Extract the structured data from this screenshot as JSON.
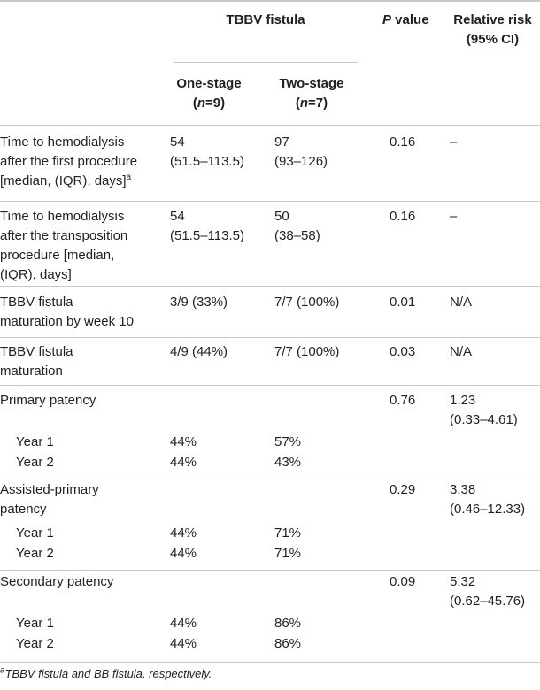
{
  "header": {
    "group_title": "TBBV fistula",
    "p_value_italic": "P",
    "p_value_rest": " value",
    "relative_risk_line1": "Relative risk",
    "relative_risk_line2": "(95% CI)",
    "one_stage_line1": "One-stage",
    "one_stage_n_open": "(",
    "one_stage_n_italic": "n",
    "one_stage_n_rest": "=9)",
    "two_stage_line1": "Two-stage",
    "two_stage_n_open": "(",
    "two_stage_n_italic": "n",
    "two_stage_n_rest": "=7)"
  },
  "rows": {
    "r1": {
      "l1": "Time to hemodialysis",
      "l2": "after the first procedure",
      "l3": "[median, (IQR), days]",
      "l3_sup": "a",
      "one1": "54",
      "one2": "(51.5–113.5)",
      "two1": "97",
      "two2": "(93–126)",
      "p": "0.16",
      "rr": "–"
    },
    "r2": {
      "l1": "Time to hemodialysis",
      "l2": "after the transposition",
      "l3": "procedure [median,",
      "l4": "(IQR), days]",
      "one1": "54",
      "one2": "(51.5–113.5)",
      "two1": "50",
      "two2": "(38–58)",
      "p": "0.16",
      "rr": "–"
    },
    "r3": {
      "l1": "TBBV fistula",
      "l2": "maturation by week 10",
      "one": "3/9 (33%)",
      "two": "7/7 (100%)",
      "p": "0.01",
      "rr": "N/A"
    },
    "r4": {
      "l1": "TBBV fistula",
      "l2": "maturation",
      "one": "4/9 (44%)",
      "two": "7/7 (100%)",
      "p": "0.03",
      "rr": "N/A"
    },
    "r5": {
      "l1": "Primary patency",
      "p": "0.76",
      "rr1": "1.23",
      "rr2": "(0.33–4.61)",
      "y1": "Year 1",
      "y1_one": "44%",
      "y1_two": "57%",
      "y2": "Year 2",
      "y2_one": "44%",
      "y2_two": "43%"
    },
    "r6": {
      "l1": "Assisted-primary",
      "l2": "patency",
      "p": "0.29",
      "rr1": "3.38",
      "rr2": "(0.46–12.33)",
      "y1": "Year 1",
      "y1_one": "44%",
      "y1_two": "71%",
      "y2": "Year 2",
      "y2_one": "44%",
      "y2_two": "71%"
    },
    "r7": {
      "l1": "Secondary patency",
      "p": "0.09",
      "rr1": "5.32",
      "rr2": "(0.62–45.76)",
      "y1": "Year 1",
      "y1_one": "44%",
      "y1_two": "86%",
      "y2": "Year 2",
      "y2_one": "44%",
      "y2_two": "86%"
    }
  },
  "footnote": {
    "sup": "a",
    "text": "TBBV fistula and BB fistula, respectively."
  }
}
